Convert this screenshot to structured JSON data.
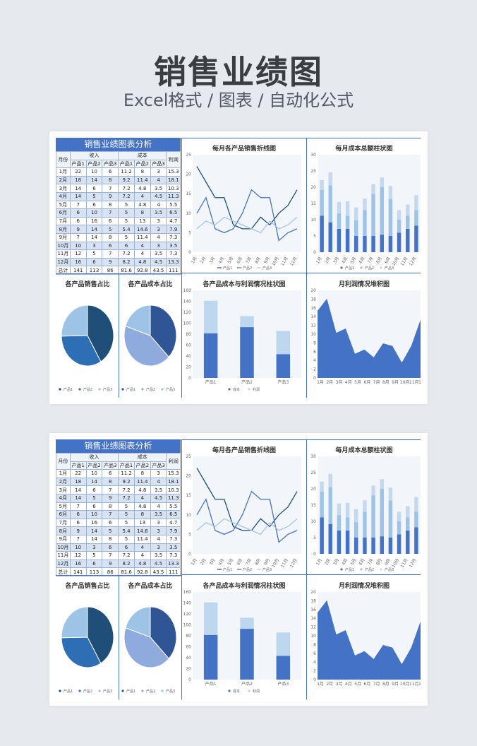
{
  "header": {
    "title": "销售业绩图",
    "subtitle": "Excel格式 / 图表 / 自动化公式"
  },
  "colors": {
    "primary": "#4472c4",
    "dark": "#1f4e79",
    "light": "#a9c4e8",
    "bg": "#f2f6fb"
  },
  "sheet": {
    "title": "销售业绩图表分析",
    "col_month": "月份",
    "group_income": "收入",
    "group_cost": "成本",
    "col_profit": "利润",
    "sub_headers": [
      "产品1",
      "产品2",
      "产品3",
      "产品1",
      "产品2",
      "产品3"
    ],
    "rows": [
      [
        "1月",
        "22",
        "10",
        "6",
        "11.2",
        "8",
        "3",
        "15.3"
      ],
      [
        "2月",
        "18",
        "14",
        "8",
        "9.2",
        "11.4",
        "4",
        "18.1"
      ],
      [
        "3月",
        "14",
        "6",
        "7",
        "7.2",
        "4.8",
        "3.5",
        "10.3"
      ],
      [
        "4月",
        "14",
        "5",
        "9",
        "7.2",
        "4",
        "4.5",
        "11.3"
      ],
      [
        "5月",
        "7",
        "6",
        "8",
        "5",
        "4.8",
        "4",
        "5.5"
      ],
      [
        "6月",
        "6",
        "10",
        "7",
        "5",
        "8",
        "3.5",
        "6.5"
      ],
      [
        "7月",
        "6",
        "16",
        "6",
        "5",
        "13",
        "3",
        "4.7"
      ],
      [
        "8月",
        "9",
        "14",
        "5",
        "5.4",
        "14.6",
        "3",
        "7.9"
      ],
      [
        "9月",
        "7",
        "14",
        "8",
        "5",
        "11.4",
        "4",
        "7.3"
      ],
      [
        "10月",
        "10",
        "3",
        "6",
        "6",
        "4",
        "3",
        "3.5"
      ],
      [
        "11月",
        "12",
        "5",
        "7",
        "7.2",
        "4",
        "3.5",
        "7.3"
      ],
      [
        "12月",
        "16",
        "6",
        "9",
        "8.2",
        "4.8",
        "4.5",
        "13.3"
      ],
      [
        "总计",
        "141",
        "113",
        "86",
        "81.6",
        "92.8",
        "43.5",
        "111"
      ]
    ]
  },
  "panels": {
    "line_title": "每月各产品销售折线图",
    "bar_title": "每月成本总额柱状图",
    "pie1_title": "各产品销售占比",
    "pie2_title": "各产品成本占比",
    "stack_title": "各产品成本与利润情况柱状图",
    "area_title": "月利润情况堆积图"
  },
  "legends": {
    "products": [
      "产品1",
      "产品2",
      "产品3"
    ],
    "cost_profit": [
      "成本",
      "利润"
    ]
  },
  "chart_data": [
    {
      "type": "line",
      "title": "每月各产品销售折线图",
      "categories": [
        "1月",
        "2月",
        "3月",
        "4月",
        "5月",
        "6月",
        "7月",
        "8月",
        "9月",
        "10月",
        "11月",
        "12月"
      ],
      "ylim": [
        0,
        25
      ],
      "yticks": [
        0,
        5,
        10,
        15,
        20,
        25
      ],
      "series": [
        {
          "name": "产品1",
          "values": [
            22,
            18,
            14,
            14,
            7,
            6,
            6,
            9,
            7,
            10,
            12,
            16
          ]
        },
        {
          "name": "产品2",
          "values": [
            10,
            14,
            6,
            5,
            6,
            10,
            16,
            14,
            14,
            3,
            5,
            6
          ]
        },
        {
          "name": "产品3",
          "values": [
            6,
            8,
            7,
            9,
            8,
            7,
            6,
            5,
            8,
            6,
            7,
            9
          ]
        }
      ]
    },
    {
      "type": "bar",
      "title": "每月成本总额柱状图",
      "categories": [
        "1月",
        "2月",
        "3月",
        "4月",
        "5月",
        "6月",
        "7月",
        "8月",
        "9月",
        "10月",
        "11月",
        "12月"
      ],
      "ylim": [
        0,
        30
      ],
      "yticks": [
        0,
        5,
        10,
        15,
        20,
        25,
        30
      ],
      "series": [
        {
          "name": "产品1",
          "values": [
            11.2,
            9.2,
            7.2,
            7.2,
            5,
            5,
            5,
            5.4,
            5,
            6,
            7.2,
            8.2
          ]
        },
        {
          "name": "产品2",
          "values": [
            8,
            11.4,
            4.8,
            4,
            4.8,
            8,
            13,
            14.6,
            11.4,
            4,
            4,
            4.8
          ]
        },
        {
          "name": "产品3",
          "values": [
            3,
            4,
            3.5,
            4.5,
            4,
            3.5,
            3,
            3,
            4,
            3,
            3.5,
            4.5
          ]
        }
      ]
    },
    {
      "type": "pie",
      "title": "各产品销售占比",
      "labels": [
        "产品1",
        "产品2",
        "产品3"
      ],
      "values": [
        141,
        113,
        86
      ]
    },
    {
      "type": "pie",
      "title": "各产品成本占比",
      "labels": [
        "产品1",
        "产品2",
        "产品3"
      ],
      "values": [
        81.6,
        92.8,
        43.5
      ]
    },
    {
      "type": "bar",
      "title": "各产品成本与利润情况柱状图",
      "categories": [
        "产品1",
        "产品2",
        "产品3"
      ],
      "ylim": [
        0,
        160
      ],
      "yticks": [
        0,
        20,
        40,
        60,
        80,
        100,
        120,
        140,
        160
      ],
      "series": [
        {
          "name": "成本",
          "values": [
            81.6,
            92.8,
            43.5
          ]
        },
        {
          "name": "利润",
          "values": [
            59.4,
            20.2,
            42.5
          ]
        }
      ]
    },
    {
      "type": "area",
      "title": "月利润情况堆积图",
      "categories": [
        "1月",
        "2月",
        "3月",
        "4月",
        "5月",
        "6月",
        "7月",
        "8月",
        "9月",
        "10月",
        "11月",
        "12月"
      ],
      "ylim": [
        0,
        20
      ],
      "yticks": [
        0,
        2,
        4,
        6,
        8,
        10,
        12,
        14,
        16,
        18,
        20
      ],
      "values": [
        15.3,
        18.1,
        10.3,
        11.3,
        5.5,
        6.5,
        4.7,
        7.9,
        7.3,
        3.5,
        7.3,
        13.3
      ]
    }
  ]
}
